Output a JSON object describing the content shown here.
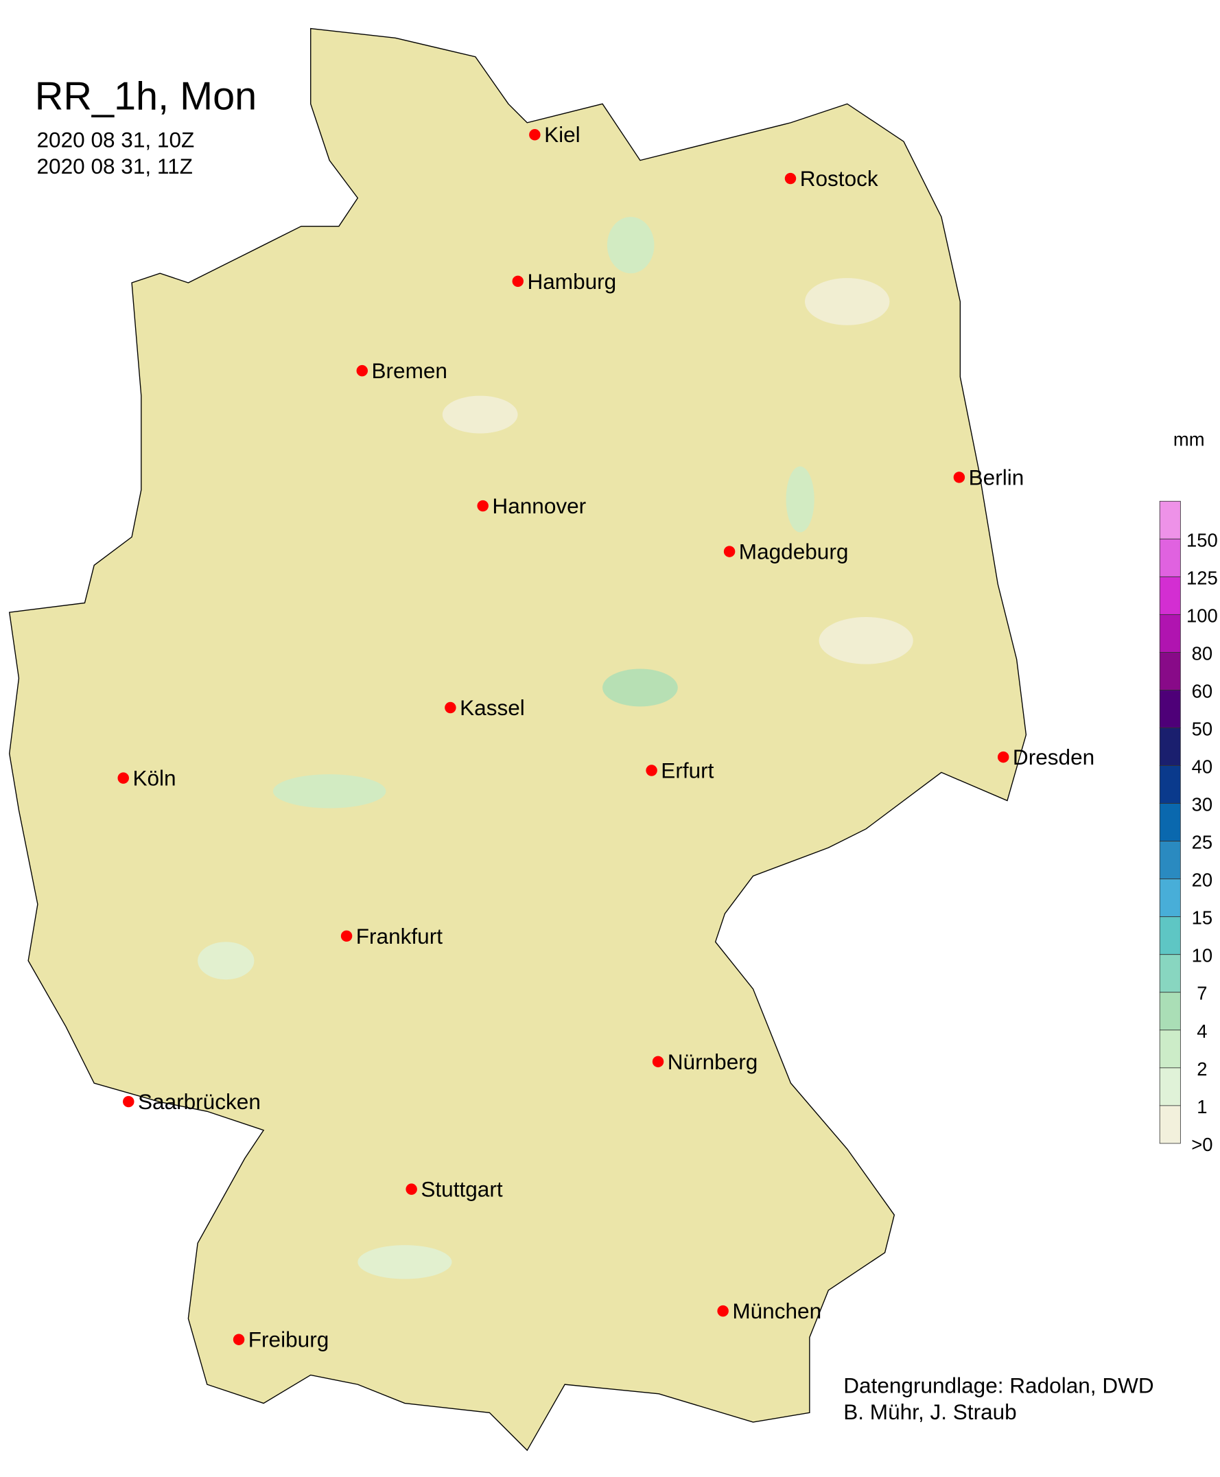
{
  "title": "RR_1h, Mon",
  "time_start": "2020 08 31, 10Z",
  "time_end": "2020 08 31, 11Z",
  "credits": [
    "Datengrundlage: Radolan, DWD",
    "B. Mühr, J. Straub"
  ],
  "colors": {
    "land": "#ebe5a9",
    "border": "#000000",
    "river": "#6a6ad8",
    "city_dot": "#ff0000"
  },
  "legend": {
    "unit": "mm",
    "labels": [
      "150",
      "125",
      "100",
      "80",
      "60",
      "50",
      "40",
      "30",
      "25",
      "20",
      "15",
      "10",
      "7",
      "4",
      "2",
      "1",
      ">0"
    ],
    "colors": [
      "#ee92e8",
      "#e062e0",
      "#d32ed2",
      "#b014b0",
      "#880a88",
      "#4e0078",
      "#1a1f6e",
      "#0a3a8c",
      "#0a68ae",
      "#2a8ac0",
      "#48aed8",
      "#5ec6c4",
      "#88d6c0",
      "#aadeb6",
      "#ccecc8",
      "#e0f2d8",
      "#f2f0dc"
    ]
  },
  "cities": [
    {
      "name": "Kiel",
      "lon": 10.13,
      "lat": 54.32
    },
    {
      "name": "Rostock",
      "lon": 12.1,
      "lat": 54.09
    },
    {
      "name": "Hamburg",
      "lon": 10.0,
      "lat": 53.55
    },
    {
      "name": "Bremen",
      "lon": 8.8,
      "lat": 53.08
    },
    {
      "name": "Berlin",
      "lon": 13.4,
      "lat": 52.52
    },
    {
      "name": "Hannover",
      "lon": 9.73,
      "lat": 52.37
    },
    {
      "name": "Magdeburg",
      "lon": 11.63,
      "lat": 52.13
    },
    {
      "name": "Kassel",
      "lon": 9.48,
      "lat": 51.31
    },
    {
      "name": "Dresden",
      "lon": 13.74,
      "lat": 51.05
    },
    {
      "name": "Köln",
      "lon": 6.96,
      "lat": 50.94
    },
    {
      "name": "Erfurt",
      "lon": 11.03,
      "lat": 50.98
    },
    {
      "name": "Frankfurt",
      "lon": 8.68,
      "lat": 50.11
    },
    {
      "name": "Nürnberg",
      "lon": 11.08,
      "lat": 49.45
    },
    {
      "name": "Saarbrücken",
      "lon": 7.0,
      "lat": 49.24
    },
    {
      "name": "Stuttgart",
      "lon": 9.18,
      "lat": 48.78
    },
    {
      "name": "München",
      "lon": 11.58,
      "lat": 48.14
    },
    {
      "name": "Freiburg",
      "lon": 7.85,
      "lat": 47.99
    }
  ]
}
